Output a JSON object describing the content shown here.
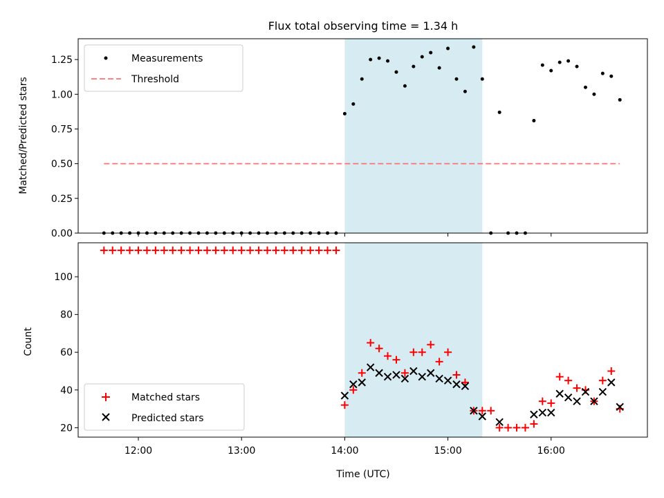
{
  "title": "Flux total observing time = 1.34 h",
  "colors": {
    "measurement": "#000000",
    "threshold": "#ff7070",
    "matched": "#ff0000",
    "predicted": "#000000",
    "highlight": "#add8e6"
  },
  "chart_data": [
    {
      "type": "scatter",
      "panel": "top",
      "ylabel": "Matched/Predicted stars",
      "ylim": [
        0,
        1.4
      ],
      "yticks": [
        0.0,
        0.25,
        0.5,
        0.75,
        1.0,
        1.25
      ],
      "ytick_labels": [
        "0.00",
        "0.25",
        "0.50",
        "0.75",
        "1.00",
        "1.25"
      ],
      "xlim": [
        "11:25",
        "16:56"
      ],
      "legend": [
        "Measurements",
        "Threshold"
      ],
      "legend_position": "top-left",
      "highlight_span": [
        "14:00",
        "15:20"
      ],
      "threshold": {
        "value": 0.5,
        "x_start": "11:40",
        "x_end": "16:40"
      },
      "series": [
        {
          "name": "Measurements",
          "marker": "dot",
          "x": [
            "11:40",
            "11:45",
            "11:50",
            "11:55",
            "12:00",
            "12:05",
            "12:10",
            "12:15",
            "12:20",
            "12:25",
            "12:30",
            "12:35",
            "12:40",
            "12:45",
            "12:50",
            "12:55",
            "13:00",
            "13:05",
            "13:10",
            "13:15",
            "13:20",
            "13:25",
            "13:30",
            "13:35",
            "13:40",
            "13:45",
            "13:50",
            "13:55",
            "14:00",
            "14:05",
            "14:10",
            "14:15",
            "14:20",
            "14:25",
            "14:30",
            "14:35",
            "14:40",
            "14:45",
            "14:50",
            "14:55",
            "15:00",
            "15:05",
            "15:10",
            "15:15",
            "15:20",
            "15:25",
            "15:30",
            "15:35",
            "15:40",
            "15:45",
            "15:50",
            "15:55",
            "16:00",
            "16:05",
            "16:10",
            "16:15",
            "16:20",
            "16:25",
            "16:30",
            "16:35",
            "16:40"
          ],
          "y": [
            0,
            0,
            0,
            0,
            0,
            0,
            0,
            0,
            0,
            0,
            0,
            0,
            0,
            0,
            0,
            0,
            0,
            0,
            0,
            0,
            0,
            0,
            0,
            0,
            0,
            0,
            0,
            0,
            0.86,
            0.93,
            1.11,
            1.25,
            1.26,
            1.24,
            1.16,
            1.06,
            1.2,
            1.27,
            1.3,
            1.19,
            1.33,
            1.11,
            1.02,
            1.34,
            1.11,
            0,
            0.87,
            0,
            0,
            0,
            0.81,
            1.21,
            1.17,
            1.23,
            1.24,
            1.2,
            1.05,
            1.0,
            1.15,
            1.13,
            0.96
          ]
        }
      ]
    },
    {
      "type": "scatter",
      "panel": "bottom",
      "xlabel": "Time (UTC)",
      "ylabel": "Count",
      "ylim": [
        15,
        118
      ],
      "yticks": [
        20,
        40,
        60,
        80,
        100
      ],
      "ytick_labels": [
        "20",
        "40",
        "60",
        "80",
        "100"
      ],
      "xlim": [
        "11:25",
        "16:56"
      ],
      "xticks": [
        "12:00",
        "13:00",
        "14:00",
        "15:00",
        "16:00"
      ],
      "legend": [
        "Matched stars",
        "Predicted stars"
      ],
      "legend_position": "bottom-left",
      "highlight_span": [
        "14:00",
        "15:20"
      ],
      "series": [
        {
          "name": "Matched stars",
          "marker": "plus",
          "x": [
            "11:40",
            "11:45",
            "11:50",
            "11:55",
            "12:00",
            "12:05",
            "12:10",
            "12:15",
            "12:20",
            "12:25",
            "12:30",
            "12:35",
            "12:40",
            "12:45",
            "12:50",
            "12:55",
            "13:00",
            "13:05",
            "13:10",
            "13:15",
            "13:20",
            "13:25",
            "13:30",
            "13:35",
            "13:40",
            "13:45",
            "13:50",
            "13:55",
            "14:00",
            "14:05",
            "14:10",
            "14:15",
            "14:20",
            "14:25",
            "14:30",
            "14:35",
            "14:40",
            "14:45",
            "14:50",
            "14:55",
            "15:00",
            "15:05",
            "15:10",
            "15:15",
            "15:20",
            "15:25",
            "15:30",
            "15:35",
            "15:40",
            "15:45",
            "15:50",
            "15:55",
            "16:00",
            "16:05",
            "16:10",
            "16:15",
            "16:20",
            "16:25",
            "16:30",
            "16:35",
            "16:40"
          ],
          "y": [
            114,
            114,
            114,
            114,
            114,
            114,
            114,
            114,
            114,
            114,
            114,
            114,
            114,
            114,
            114,
            114,
            114,
            114,
            114,
            114,
            114,
            114,
            114,
            114,
            114,
            114,
            114,
            114,
            32,
            40,
            49,
            65,
            62,
            58,
            56,
            49,
            60,
            60,
            64,
            55,
            60,
            48,
            44,
            29,
            29,
            29,
            20,
            20,
            20,
            20,
            22,
            34,
            33,
            47,
            45,
            41,
            40,
            34,
            45,
            50,
            30
          ]
        },
        {
          "name": "Predicted stars",
          "marker": "x",
          "x": [
            "14:00",
            "14:05",
            "14:10",
            "14:15",
            "14:20",
            "14:25",
            "14:30",
            "14:35",
            "14:40",
            "14:45",
            "14:50",
            "14:55",
            "15:00",
            "15:05",
            "15:10",
            "15:15",
            "15:20",
            "15:30",
            "15:50",
            "15:55",
            "16:00",
            "16:05",
            "16:10",
            "16:15",
            "16:20",
            "16:25",
            "16:30",
            "16:35",
            "16:40"
          ],
          "y": [
            37,
            43,
            44,
            52,
            49,
            47,
            48,
            46,
            50,
            47,
            49,
            46,
            45,
            43,
            42,
            29,
            26,
            23,
            27,
            28,
            28,
            38,
            36,
            34,
            39,
            34,
            39,
            44,
            31
          ]
        }
      ]
    }
  ]
}
